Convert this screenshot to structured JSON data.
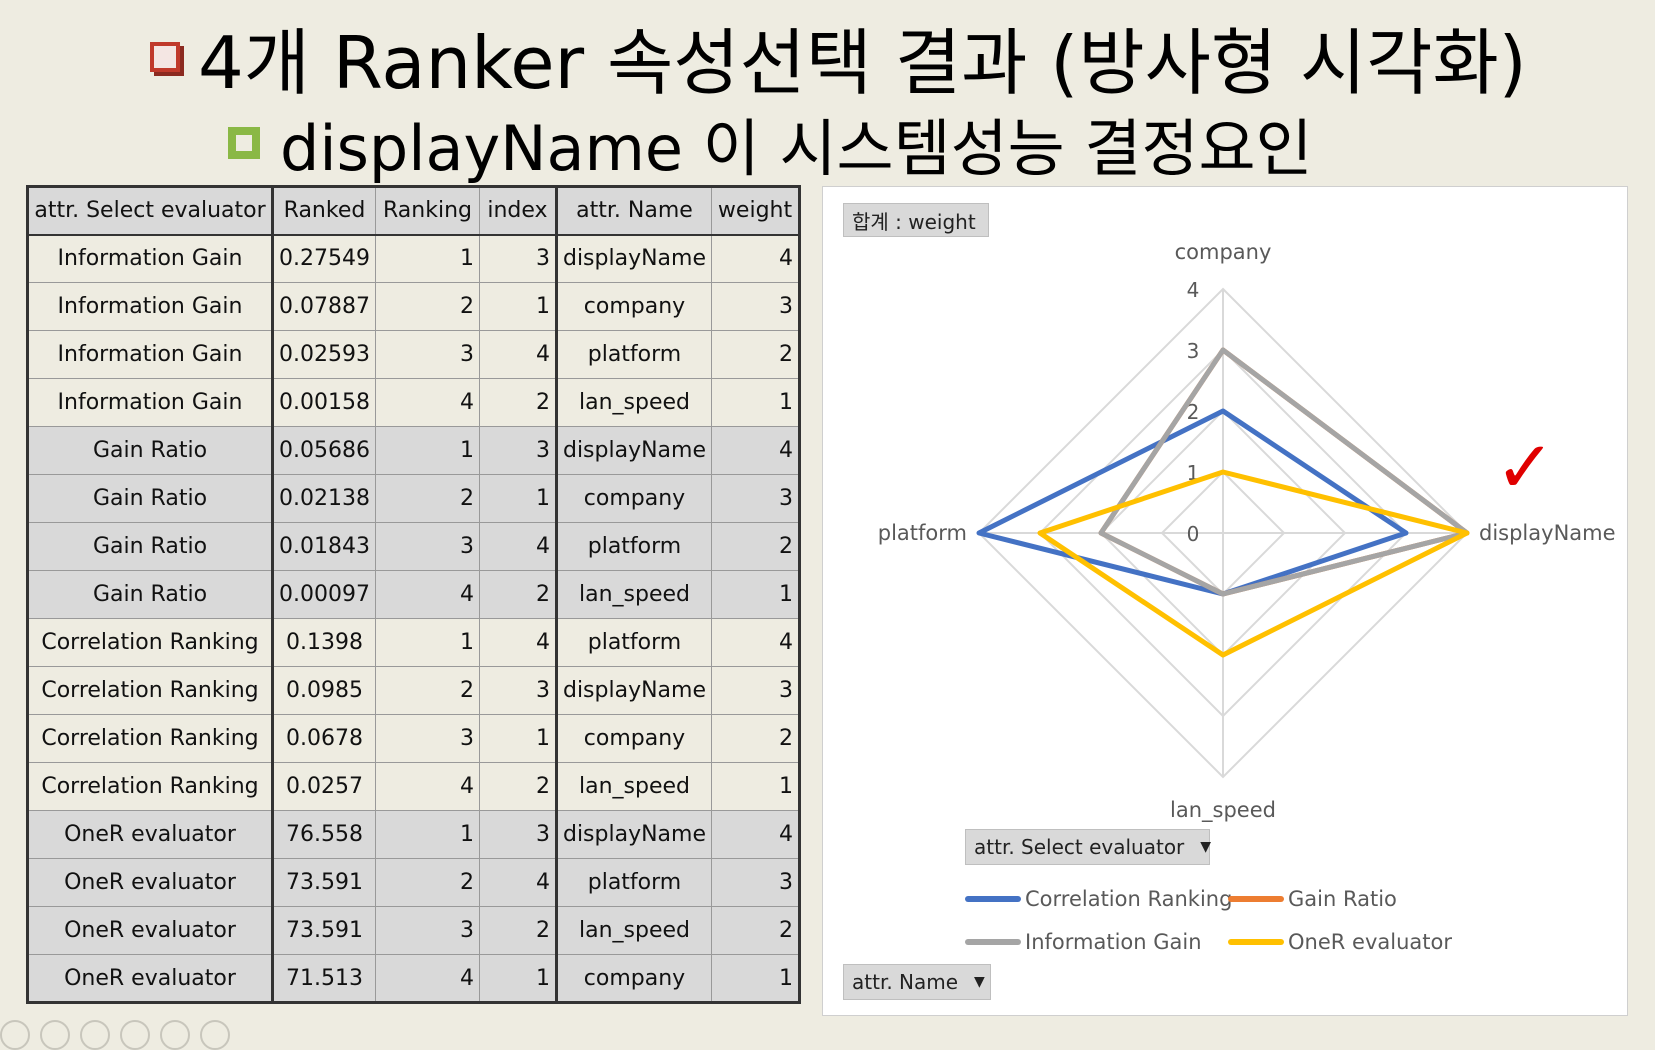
{
  "title": {
    "text": "4개 Ranker 속성선택 결과 (방사형 시각화)"
  },
  "subtitle": {
    "text": "displayName 이 시스템성능 결정요인"
  },
  "table": {
    "headers": [
      "attr. Select evaluator",
      "Ranked",
      "Ranking",
      "index",
      "attr. Name",
      "weight"
    ],
    "rows": [
      [
        "Information Gain",
        "0.27549",
        "1",
        "3",
        "displayName",
        "4"
      ],
      [
        "Information Gain",
        "0.07887",
        "2",
        "1",
        "company",
        "3"
      ],
      [
        "Information Gain",
        "0.02593",
        "3",
        "4",
        "platform",
        "2"
      ],
      [
        "Information Gain",
        "0.00158",
        "4",
        "2",
        "lan_speed",
        "1"
      ],
      [
        "Gain Ratio",
        "0.05686",
        "1",
        "3",
        "displayName",
        "4"
      ],
      [
        "Gain Ratio",
        "0.02138",
        "2",
        "1",
        "company",
        "3"
      ],
      [
        "Gain Ratio",
        "0.01843",
        "3",
        "4",
        "platform",
        "2"
      ],
      [
        "Gain Ratio",
        "0.00097",
        "4",
        "2",
        "lan_speed",
        "1"
      ],
      [
        "Correlation Ranking",
        "0.1398",
        "1",
        "4",
        "platform",
        "4"
      ],
      [
        "Correlation Ranking",
        "0.0985",
        "2",
        "3",
        "displayName",
        "3"
      ],
      [
        "Correlation Ranking",
        "0.0678",
        "3",
        "1",
        "company",
        "2"
      ],
      [
        "Correlation Ranking",
        "0.0257",
        "4",
        "2",
        "lan_speed",
        "1"
      ],
      [
        "OneR evaluator",
        "76.558",
        "1",
        "3",
        "displayName",
        "4"
      ],
      [
        "OneR evaluator",
        "73.591",
        "2",
        "4",
        "platform",
        "3"
      ],
      [
        "OneR evaluator",
        "73.591",
        "3",
        "2",
        "lan_speed",
        "2"
      ],
      [
        "OneR evaluator",
        "71.513",
        "4",
        "1",
        "company",
        "1"
      ]
    ]
  },
  "pivot": {
    "value_field": "합계 : weight",
    "series_field": "attr. Select evaluator",
    "category_field": "attr. Name"
  },
  "chart_data": {
    "type": "radar",
    "categories": [
      "company",
      "displayName",
      "lan_speed",
      "platform"
    ],
    "rlim": [
      0,
      4
    ],
    "ticks": [
      "0",
      "1",
      "2",
      "3",
      "4"
    ],
    "grid": true,
    "legend_position": "bottom",
    "series": [
      {
        "name": "Correlation Ranking",
        "color": "#4472c4",
        "values": [
          2,
          3,
          1,
          4
        ]
      },
      {
        "name": "Gain Ratio",
        "color": "#ed7d31",
        "values": [
          3,
          4,
          1,
          2
        ]
      },
      {
        "name": "Information Gain",
        "color": "#a5a5a5",
        "values": [
          3,
          4,
          1,
          2
        ]
      },
      {
        "name": "OneR evaluator",
        "color": "#ffc000",
        "values": [
          1,
          4,
          2,
          3
        ]
      }
    ]
  },
  "annotation": {
    "checkmark": "✓",
    "color": "#e00000"
  }
}
